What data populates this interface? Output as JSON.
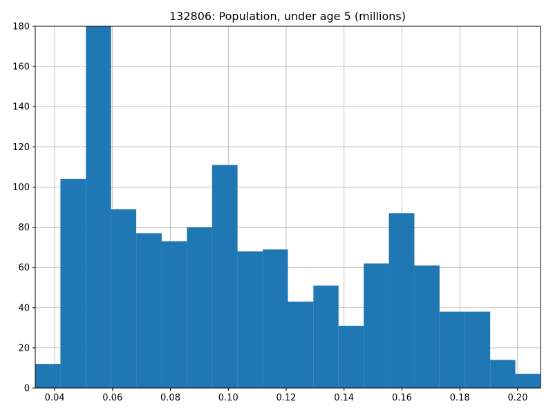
{
  "chart_data": {
    "type": "bar",
    "title": "132806: Population, under age 5 (millions)",
    "xlabel": "",
    "ylabel": "",
    "bin_edges": [
      0.0333,
      0.042,
      0.0508,
      0.0595,
      0.0682,
      0.077,
      0.0857,
      0.0944,
      0.1032,
      0.1119,
      0.1206,
      0.1294,
      0.1381,
      0.1468,
      0.1555,
      0.1643,
      0.173,
      0.1817,
      0.1905,
      0.1992,
      0.2079
    ],
    "values": [
      12,
      104,
      180,
      89,
      77,
      73,
      80,
      111,
      68,
      69,
      43,
      51,
      31,
      62,
      87,
      61,
      38,
      38,
      14,
      7
    ],
    "xlim": [
      0.0333,
      0.2079
    ],
    "ylim": [
      0,
      180
    ],
    "xticks": [
      0.04,
      0.06,
      0.08,
      0.1,
      0.12,
      0.14,
      0.16,
      0.18,
      0.2
    ],
    "xtick_labels": [
      "0.04",
      "0.06",
      "0.08",
      "0.10",
      "0.12",
      "0.14",
      "0.16",
      "0.18",
      "0.20"
    ],
    "yticks": [
      0,
      20,
      40,
      60,
      80,
      100,
      120,
      140,
      160,
      180
    ],
    "ytick_labels": [
      "0",
      "20",
      "40",
      "60",
      "80",
      "100",
      "120",
      "140",
      "160",
      "180"
    ],
    "grid": true,
    "bar_color": "#1f77b4",
    "grid_color": "#b0b0b0"
  }
}
